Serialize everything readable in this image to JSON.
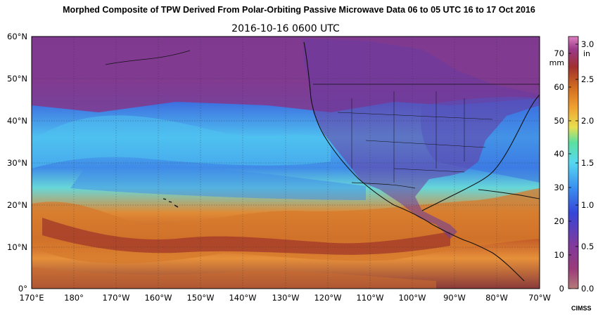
{
  "header": {
    "title": "Morphed Composite of TPW Derived From Polar-Orbiting Passive Microwave Data 06 to 05 UTC  16 to 17 Oct 2016",
    "timestamp": "2016-10-16 0600 UTC"
  },
  "map": {
    "lat_labels": [
      "60°N",
      "50°N",
      "40°N",
      "30°N",
      "20°N",
      "10°N",
      "0°"
    ],
    "lon_labels": [
      "170°E",
      "180°",
      "170°W",
      "160°W",
      "150°W",
      "140°W",
      "130°W",
      "120°W",
      "110°W",
      "100°W",
      "90°W",
      "80°W",
      "70°W"
    ],
    "extent": {
      "lon_min": 170,
      "lon_max": 290,
      "lat_min": 0,
      "lat_max": 60
    },
    "gridlines": true,
    "colors": {
      "dry": "#7a2f86",
      "moderate": "#2f6fe0",
      "moist": "#48c6f0",
      "wet": "#e07a25",
      "very_wet": "#9a2a2a",
      "coast": "#111111"
    }
  },
  "colorbar": {
    "mm_unit": "mm",
    "in_unit": "in",
    "mm_ticks": [
      "0",
      "10",
      "20",
      "30",
      "40",
      "50",
      "60",
      "70"
    ],
    "in_ticks": [
      "0.0",
      "0.5",
      "1.0",
      "1.5",
      "2.0",
      "2.5",
      "3.0"
    ]
  },
  "credit": "CIMSS"
}
